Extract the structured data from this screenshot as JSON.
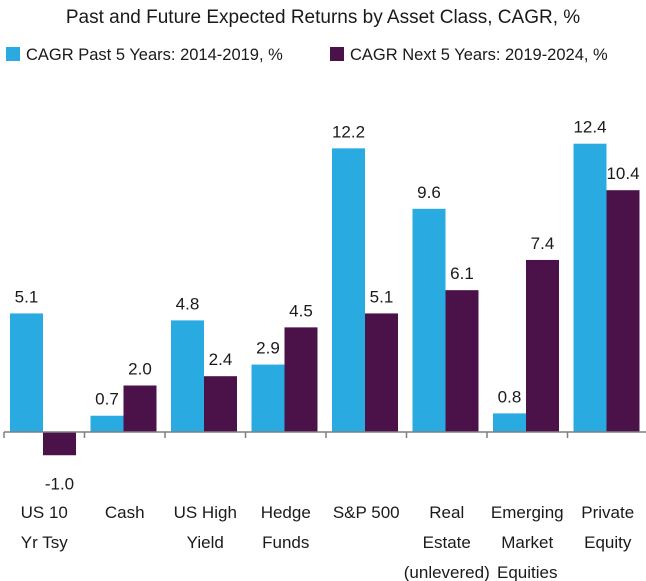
{
  "chart_data": {
    "type": "bar",
    "title": "Past and Future Expected Returns by Asset Class, CAGR, %",
    "categories": [
      [
        "US 10",
        "Yr Tsy"
      ],
      [
        "Cash"
      ],
      [
        "US High",
        "Yield"
      ],
      [
        "Hedge",
        "Funds"
      ],
      [
        "S&P 500"
      ],
      [
        "Real",
        "Estate",
        "(unlevered)"
      ],
      [
        "Emerging",
        "Market",
        "Equities"
      ],
      [
        "Private",
        "Equity"
      ]
    ],
    "series": [
      {
        "name": "CAGR Past 5 Years: 2014-2019, %",
        "color": "#29ABE2",
        "values": [
          5.1,
          0.7,
          4.8,
          2.9,
          12.2,
          9.6,
          0.8,
          12.4
        ],
        "labels": [
          "5.1",
          "0.7",
          "4.8",
          "2.9",
          "12.2",
          "9.6",
          "0.8",
          "12.4"
        ]
      },
      {
        "name": "CAGR Next 5 Years: 2019-2024, %",
        "color": "#4A1248",
        "values": [
          -1.0,
          2.0,
          2.4,
          4.5,
          5.1,
          6.1,
          7.4,
          10.4
        ],
        "labels": [
          "-1.0",
          "2.0",
          "2.4",
          "4.5",
          "5.1",
          "6.1",
          "7.4",
          "10.4"
        ]
      }
    ],
    "ylim": [
      -1.5,
      12.4
    ],
    "xlabel": "",
    "ylabel": "",
    "grid": false,
    "legend_position": "top"
  }
}
